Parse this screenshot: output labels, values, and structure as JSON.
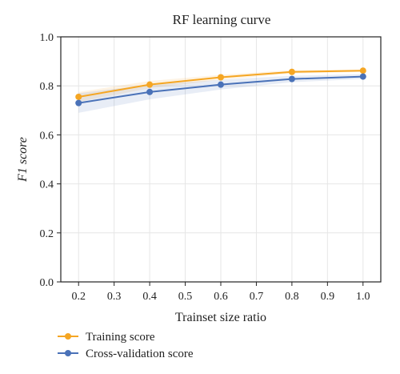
{
  "chart_data": {
    "type": "line",
    "title": "RF learning curve",
    "xlabel": "Trainset size ratio",
    "ylabel": "F1 score",
    "xlim": [
      0.15,
      1.05
    ],
    "ylim": [
      0.0,
      1.0
    ],
    "xticks": [
      "0.2",
      "0.3",
      "0.4",
      "0.5",
      "0.6",
      "0.7",
      "0.8",
      "0.9",
      "1.0"
    ],
    "yticks": [
      "0.0",
      "0.2",
      "0.4",
      "0.6",
      "0.8",
      "1.0"
    ],
    "grid": true,
    "legend_position": "bottom-left",
    "x": [
      0.2,
      0.4,
      0.6,
      0.8,
      1.0
    ],
    "series": [
      {
        "name": "Training score",
        "color": "#f5a623",
        "values": [
          0.755,
          0.805,
          0.835,
          0.857,
          0.862
        ],
        "band_low": [
          0.735,
          0.79,
          0.825,
          0.85,
          0.857
        ],
        "band_high": [
          0.775,
          0.82,
          0.845,
          0.864,
          0.867
        ]
      },
      {
        "name": "Cross-validation score",
        "color": "#4a72b8",
        "values": [
          0.73,
          0.775,
          0.805,
          0.828,
          0.838
        ],
        "band_low": [
          0.69,
          0.745,
          0.785,
          0.815,
          0.828
        ],
        "band_high": [
          0.77,
          0.805,
          0.825,
          0.841,
          0.848
        ]
      }
    ]
  }
}
